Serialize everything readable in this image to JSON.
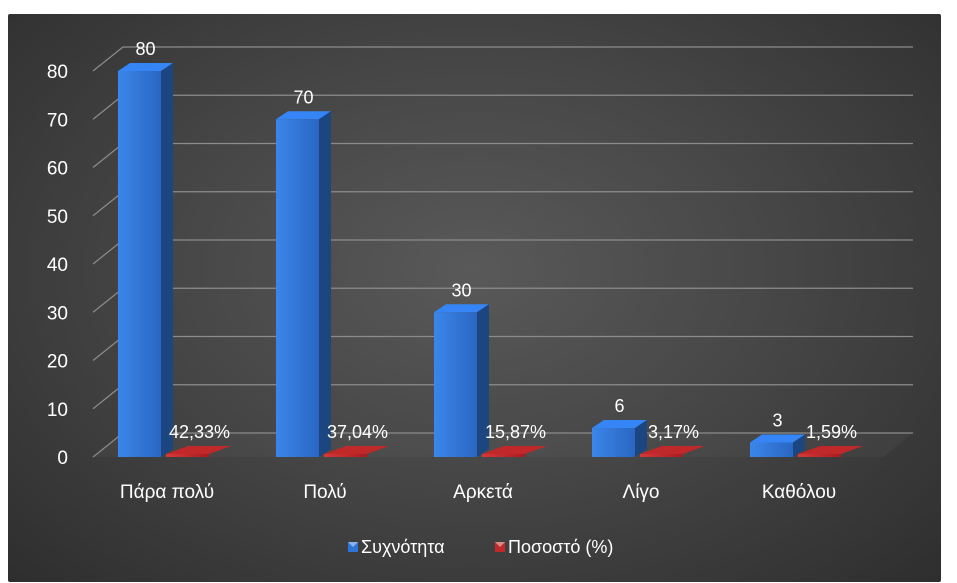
{
  "chart_data": {
    "type": "bar",
    "title": "",
    "xlabel": "",
    "ylabel": "",
    "ylim": [
      0,
      80
    ],
    "y_ticks": [
      0,
      10,
      20,
      30,
      40,
      50,
      60,
      70,
      80
    ],
    "categories": [
      "Πάρα πολύ",
      "Πολύ",
      "Αρκετά",
      "Λίγο",
      "Καθόλου"
    ],
    "series": [
      {
        "name": "Συχνότητα",
        "values": [
          80,
          70,
          30,
          6,
          3
        ],
        "labels": [
          "80",
          "70",
          "30",
          "6",
          "3"
        ],
        "color": "#2e74d6"
      },
      {
        "name": "Ποσοστό (%)",
        "values": [
          42.33,
          37.04,
          15.87,
          3.17,
          1.59
        ],
        "labels": [
          "42,33%",
          "37,04%",
          "15,87%",
          "3,17%",
          "1,59%"
        ],
        "color": "#c0282a"
      }
    ],
    "grid": true,
    "legend_position": "bottom",
    "style": "3d-clustered-column"
  }
}
